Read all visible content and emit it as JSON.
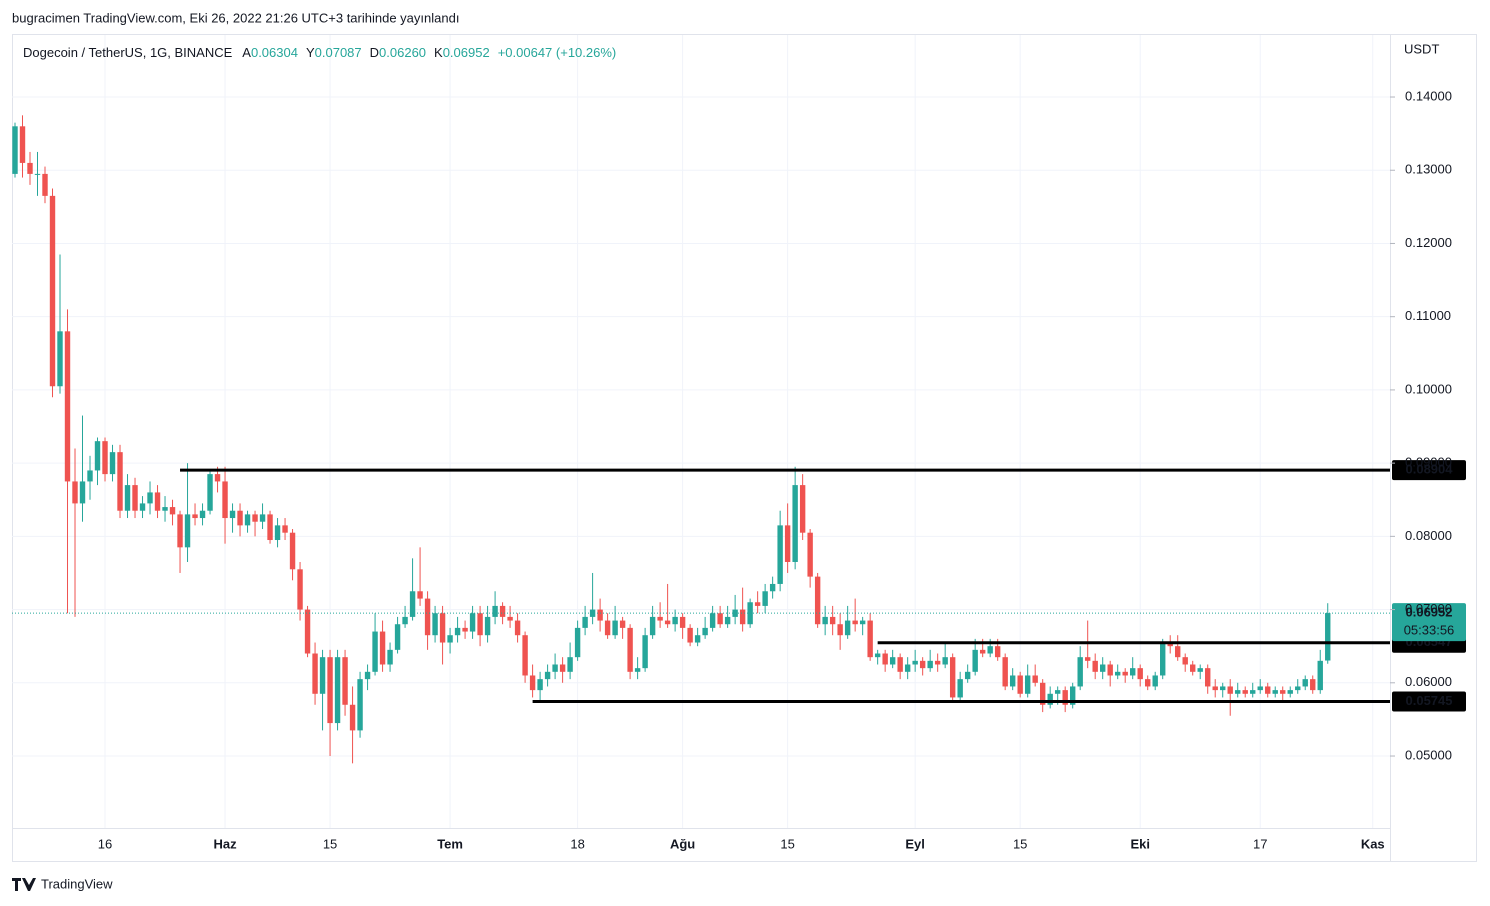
{
  "header": {
    "published": "bugracimen TradingView.com, Eki 26, 2022 21:26 UTC+3 tarihinde yayınlandı"
  },
  "footer": {
    "brand": "TradingView"
  },
  "chart_data": {
    "type": "candlestick",
    "symbol": "Dogecoin / TetherUS, 1G, BINANCE",
    "ohlc_prefixes": [
      "A",
      "Y",
      "D",
      "K"
    ],
    "ohlc_labels": [
      "0.06304",
      "0.07087",
      "0.06260",
      "0.06952"
    ],
    "change_text": "+0.00647 (+10.26%)",
    "currency": "USDT",
    "countdown": "05:33:56",
    "up_color": "#26a69a",
    "down_color": "#ef5350",
    "grid": true,
    "xlim": [
      -0.4,
      183.3
    ],
    "ylim": [
      0.04017,
      0.14847
    ],
    "xticks": [
      {
        "value": 12,
        "label": "16"
      },
      {
        "value": 28,
        "label": "Haz"
      },
      {
        "value": 42,
        "label": "15"
      },
      {
        "value": 58,
        "label": "Tem"
      },
      {
        "value": 75,
        "label": "18"
      },
      {
        "value": 89,
        "label": "Ağu"
      },
      {
        "value": 103,
        "label": "15"
      },
      {
        "value": 120,
        "label": "Eyl"
      },
      {
        "value": 134,
        "label": "15"
      },
      {
        "value": 150,
        "label": "Eki"
      },
      {
        "value": 166,
        "label": "17"
      },
      {
        "value": 181,
        "label": "Kas"
      }
    ],
    "month_ticks": [
      "Haz",
      "Tem",
      "Ağu",
      "Eyl",
      "Eki",
      "Kas"
    ],
    "yticks": [
      {
        "value": 0.05,
        "label": "0.05000"
      },
      {
        "value": 0.06,
        "label": "0.06000"
      },
      {
        "value": 0.07,
        "label": "0.07000"
      },
      {
        "value": 0.08,
        "label": "0.08000"
      },
      {
        "value": 0.09,
        "label": "0.09000"
      },
      {
        "value": 0.1,
        "label": "0.10000"
      },
      {
        "value": 0.11,
        "label": "0.11000"
      },
      {
        "value": 0.12,
        "label": "0.12000"
      },
      {
        "value": 0.13,
        "label": "0.13000"
      },
      {
        "value": 0.14,
        "label": "0.14000"
      }
    ],
    "levels": [
      {
        "value": 0.08904,
        "from_x": 22
      },
      {
        "value": 0.06547,
        "from_x": 115
      },
      {
        "value": 0.05745,
        "from_x": 69
      }
    ],
    "ohlc": [
      [
        0.1295,
        0.1365,
        0.129,
        0.136
      ],
      [
        0.136,
        0.1375,
        0.129,
        0.131
      ],
      [
        0.131,
        0.1325,
        0.128,
        0.1295
      ],
      [
        0.1295,
        0.1325,
        0.1265,
        0.1295
      ],
      [
        0.1295,
        0.1305,
        0.1255,
        0.1265
      ],
      [
        0.1265,
        0.1275,
        0.099,
        0.1005
      ],
      [
        0.1005,
        0.1185,
        0.0995,
        0.108
      ],
      [
        0.108,
        0.111,
        0.0695,
        0.0875
      ],
      [
        0.0875,
        0.092,
        0.069,
        0.0845
      ],
      [
        0.0845,
        0.0965,
        0.082,
        0.0875
      ],
      [
        0.0875,
        0.091,
        0.085,
        0.089
      ],
      [
        0.089,
        0.0935,
        0.087,
        0.093
      ],
      [
        0.093,
        0.0935,
        0.0875,
        0.0885
      ],
      [
        0.0885,
        0.0925,
        0.0875,
        0.0915
      ],
      [
        0.0915,
        0.0925,
        0.0825,
        0.0835
      ],
      [
        0.0835,
        0.0885,
        0.0825,
        0.087
      ],
      [
        0.087,
        0.088,
        0.0825,
        0.0835
      ],
      [
        0.0835,
        0.0855,
        0.0825,
        0.0845
      ],
      [
        0.0845,
        0.0875,
        0.083,
        0.086
      ],
      [
        0.086,
        0.087,
        0.0825,
        0.0835
      ],
      [
        0.0835,
        0.0855,
        0.082,
        0.084
      ],
      [
        0.084,
        0.085,
        0.0815,
        0.083
      ],
      [
        0.083,
        0.0835,
        0.075,
        0.0785
      ],
      [
        0.0785,
        0.09,
        0.0765,
        0.083
      ],
      [
        0.083,
        0.0845,
        0.0815,
        0.0825
      ],
      [
        0.0825,
        0.0845,
        0.0815,
        0.0835
      ],
      [
        0.0835,
        0.089,
        0.083,
        0.0885
      ],
      [
        0.0885,
        0.0895,
        0.086,
        0.0875
      ],
      [
        0.0875,
        0.0895,
        0.079,
        0.0825
      ],
      [
        0.0825,
        0.0845,
        0.0805,
        0.0835
      ],
      [
        0.0835,
        0.0845,
        0.08,
        0.0815
      ],
      [
        0.0815,
        0.0835,
        0.0805,
        0.083
      ],
      [
        0.083,
        0.0835,
        0.08,
        0.082
      ],
      [
        0.082,
        0.0845,
        0.081,
        0.083
      ],
      [
        0.083,
        0.0835,
        0.079,
        0.0795
      ],
      [
        0.0795,
        0.0825,
        0.0785,
        0.0815
      ],
      [
        0.0815,
        0.0825,
        0.0795,
        0.0805
      ],
      [
        0.0805,
        0.081,
        0.074,
        0.0755
      ],
      [
        0.0755,
        0.0765,
        0.0685,
        0.07
      ],
      [
        0.07,
        0.0705,
        0.0635,
        0.064
      ],
      [
        0.064,
        0.0655,
        0.057,
        0.0585
      ],
      [
        0.0585,
        0.0645,
        0.0535,
        0.0635
      ],
      [
        0.0635,
        0.0645,
        0.05,
        0.0545
      ],
      [
        0.0545,
        0.0645,
        0.0535,
        0.0635
      ],
      [
        0.0635,
        0.0645,
        0.0555,
        0.057
      ],
      [
        0.057,
        0.0595,
        0.049,
        0.0535
      ],
      [
        0.0535,
        0.0615,
        0.0525,
        0.0605
      ],
      [
        0.0605,
        0.0625,
        0.059,
        0.0615
      ],
      [
        0.0615,
        0.0695,
        0.061,
        0.067
      ],
      [
        0.067,
        0.0685,
        0.0615,
        0.0625
      ],
      [
        0.0625,
        0.0655,
        0.0615,
        0.0645
      ],
      [
        0.0645,
        0.069,
        0.064,
        0.068
      ],
      [
        0.068,
        0.0705,
        0.0675,
        0.069
      ],
      [
        0.069,
        0.077,
        0.0685,
        0.0725
      ],
      [
        0.0725,
        0.0785,
        0.0705,
        0.0715
      ],
      [
        0.0715,
        0.0725,
        0.0645,
        0.0665
      ],
      [
        0.0665,
        0.0705,
        0.0655,
        0.0695
      ],
      [
        0.0695,
        0.0705,
        0.0625,
        0.0655
      ],
      [
        0.0655,
        0.0675,
        0.064,
        0.0665
      ],
      [
        0.0665,
        0.069,
        0.0655,
        0.0675
      ],
      [
        0.0675,
        0.0685,
        0.066,
        0.067
      ],
      [
        0.067,
        0.0705,
        0.066,
        0.0695
      ],
      [
        0.0695,
        0.0705,
        0.065,
        0.0665
      ],
      [
        0.0665,
        0.0705,
        0.0655,
        0.069
      ],
      [
        0.069,
        0.0725,
        0.068,
        0.0705
      ],
      [
        0.0705,
        0.071,
        0.068,
        0.069
      ],
      [
        0.069,
        0.0705,
        0.0675,
        0.0685
      ],
      [
        0.0685,
        0.0695,
        0.0655,
        0.0665
      ],
      [
        0.0665,
        0.067,
        0.06,
        0.061
      ],
      [
        0.061,
        0.0625,
        0.058,
        0.059
      ],
      [
        0.059,
        0.0615,
        0.0575,
        0.0605
      ],
      [
        0.0605,
        0.0625,
        0.0595,
        0.0615
      ],
      [
        0.0615,
        0.064,
        0.0605,
        0.0625
      ],
      [
        0.0625,
        0.0635,
        0.06,
        0.0615
      ],
      [
        0.0615,
        0.0655,
        0.0605,
        0.0635
      ],
      [
        0.0635,
        0.0685,
        0.063,
        0.0675
      ],
      [
        0.0675,
        0.0705,
        0.0665,
        0.069
      ],
      [
        0.069,
        0.075,
        0.068,
        0.07
      ],
      [
        0.07,
        0.0715,
        0.067,
        0.0685
      ],
      [
        0.0685,
        0.0695,
        0.066,
        0.0665
      ],
      [
        0.0665,
        0.0705,
        0.066,
        0.0685
      ],
      [
        0.0685,
        0.069,
        0.066,
        0.0675
      ],
      [
        0.0675,
        0.068,
        0.0605,
        0.0615
      ],
      [
        0.0615,
        0.0635,
        0.0605,
        0.062
      ],
      [
        0.062,
        0.0675,
        0.0615,
        0.0665
      ],
      [
        0.0665,
        0.0705,
        0.066,
        0.069
      ],
      [
        0.069,
        0.071,
        0.0675,
        0.0685
      ],
      [
        0.0685,
        0.0735,
        0.0675,
        0.068
      ],
      [
        0.068,
        0.07,
        0.067,
        0.069
      ],
      [
        0.069,
        0.0695,
        0.066,
        0.0675
      ],
      [
        0.0675,
        0.068,
        0.065,
        0.0655
      ],
      [
        0.0655,
        0.0675,
        0.065,
        0.0665
      ],
      [
        0.0665,
        0.069,
        0.066,
        0.0675
      ],
      [
        0.0675,
        0.0705,
        0.067,
        0.0695
      ],
      [
        0.0695,
        0.0705,
        0.0675,
        0.068
      ],
      [
        0.068,
        0.0705,
        0.0675,
        0.069
      ],
      [
        0.069,
        0.072,
        0.068,
        0.07
      ],
      [
        0.07,
        0.073,
        0.067,
        0.068
      ],
      [
        0.068,
        0.0715,
        0.0675,
        0.071
      ],
      [
        0.071,
        0.0725,
        0.0695,
        0.0705
      ],
      [
        0.0705,
        0.0735,
        0.0695,
        0.0725
      ],
      [
        0.0725,
        0.0745,
        0.0715,
        0.0735
      ],
      [
        0.0735,
        0.0835,
        0.0725,
        0.0815
      ],
      [
        0.0815,
        0.0845,
        0.075,
        0.0765
      ],
      [
        0.0765,
        0.0895,
        0.0755,
        0.087
      ],
      [
        0.087,
        0.0885,
        0.0795,
        0.0805
      ],
      [
        0.0805,
        0.081,
        0.073,
        0.0745
      ],
      [
        0.0745,
        0.075,
        0.0675,
        0.068
      ],
      [
        0.068,
        0.0705,
        0.0665,
        0.069
      ],
      [
        0.069,
        0.0705,
        0.0665,
        0.068
      ],
      [
        0.068,
        0.0695,
        0.0645,
        0.0665
      ],
      [
        0.0665,
        0.0705,
        0.066,
        0.0685
      ],
      [
        0.0685,
        0.0715,
        0.067,
        0.068
      ],
      [
        0.068,
        0.069,
        0.0665,
        0.0685
      ],
      [
        0.0685,
        0.0695,
        0.063,
        0.0635
      ],
      [
        0.0635,
        0.0645,
        0.0625,
        0.064
      ],
      [
        0.064,
        0.0645,
        0.0615,
        0.0625
      ],
      [
        0.0625,
        0.0645,
        0.062,
        0.0635
      ],
      [
        0.0635,
        0.064,
        0.0605,
        0.0615
      ],
      [
        0.0615,
        0.0635,
        0.0605,
        0.0625
      ],
      [
        0.0625,
        0.0645,
        0.0615,
        0.063
      ],
      [
        0.063,
        0.0635,
        0.061,
        0.062
      ],
      [
        0.062,
        0.0645,
        0.0615,
        0.063
      ],
      [
        0.063,
        0.064,
        0.0615,
        0.0625
      ],
      [
        0.0625,
        0.0655,
        0.062,
        0.0635
      ],
      [
        0.0635,
        0.064,
        0.0575,
        0.058
      ],
      [
        0.058,
        0.0615,
        0.0575,
        0.0605
      ],
      [
        0.0605,
        0.0625,
        0.06,
        0.0615
      ],
      [
        0.0615,
        0.066,
        0.061,
        0.0645
      ],
      [
        0.0645,
        0.066,
        0.0635,
        0.064
      ],
      [
        0.064,
        0.066,
        0.0635,
        0.065
      ],
      [
        0.065,
        0.066,
        0.063,
        0.0635
      ],
      [
        0.0635,
        0.064,
        0.059,
        0.0595
      ],
      [
        0.0595,
        0.062,
        0.059,
        0.061
      ],
      [
        0.061,
        0.0615,
        0.058,
        0.0585
      ],
      [
        0.0585,
        0.0625,
        0.058,
        0.061
      ],
      [
        0.061,
        0.0625,
        0.0595,
        0.06
      ],
      [
        0.06,
        0.0605,
        0.056,
        0.057
      ],
      [
        0.057,
        0.0595,
        0.0565,
        0.0585
      ],
      [
        0.0585,
        0.0595,
        0.057,
        0.059
      ],
      [
        0.059,
        0.0595,
        0.056,
        0.057
      ],
      [
        0.057,
        0.06,
        0.0565,
        0.0595
      ],
      [
        0.0595,
        0.065,
        0.059,
        0.0635
      ],
      [
        0.0635,
        0.0685,
        0.062,
        0.063
      ],
      [
        0.063,
        0.064,
        0.0605,
        0.0615
      ],
      [
        0.0615,
        0.0635,
        0.0605,
        0.0625
      ],
      [
        0.0625,
        0.063,
        0.0595,
        0.061
      ],
      [
        0.061,
        0.0625,
        0.0605,
        0.0615
      ],
      [
        0.0615,
        0.062,
        0.06,
        0.061
      ],
      [
        0.061,
        0.0635,
        0.0605,
        0.062
      ],
      [
        0.062,
        0.0625,
        0.0595,
        0.0605
      ],
      [
        0.0605,
        0.061,
        0.059,
        0.0595
      ],
      [
        0.0595,
        0.0615,
        0.059,
        0.061
      ],
      [
        0.061,
        0.066,
        0.0605,
        0.0655
      ],
      [
        0.0655,
        0.0665,
        0.064,
        0.065
      ],
      [
        0.065,
        0.0665,
        0.063,
        0.0635
      ],
      [
        0.0635,
        0.064,
        0.0615,
        0.0625
      ],
      [
        0.0625,
        0.063,
        0.061,
        0.0615
      ],
      [
        0.0615,
        0.0625,
        0.0605,
        0.062
      ],
      [
        0.062,
        0.0625,
        0.0585,
        0.0595
      ],
      [
        0.0595,
        0.0605,
        0.058,
        0.059
      ],
      [
        0.059,
        0.06,
        0.058,
        0.0595
      ],
      [
        0.0595,
        0.0605,
        0.0555,
        0.0585
      ],
      [
        0.0585,
        0.06,
        0.058,
        0.059
      ],
      [
        0.059,
        0.0595,
        0.058,
        0.0585
      ],
      [
        0.0585,
        0.06,
        0.058,
        0.059
      ],
      [
        0.059,
        0.0605,
        0.0585,
        0.0595
      ],
      [
        0.0595,
        0.06,
        0.058,
        0.0585
      ],
      [
        0.0585,
        0.0595,
        0.058,
        0.059
      ],
      [
        0.059,
        0.0595,
        0.0575,
        0.0585
      ],
      [
        0.0585,
        0.0595,
        0.058,
        0.059
      ],
      [
        0.059,
        0.0605,
        0.0585,
        0.0595
      ],
      [
        0.0595,
        0.061,
        0.059,
        0.0605
      ],
      [
        0.0605,
        0.061,
        0.0585,
        0.059
      ],
      [
        0.059,
        0.0645,
        0.0585,
        0.063
      ],
      [
        0.06304,
        0.07087,
        0.0626,
        0.06952
      ]
    ]
  }
}
